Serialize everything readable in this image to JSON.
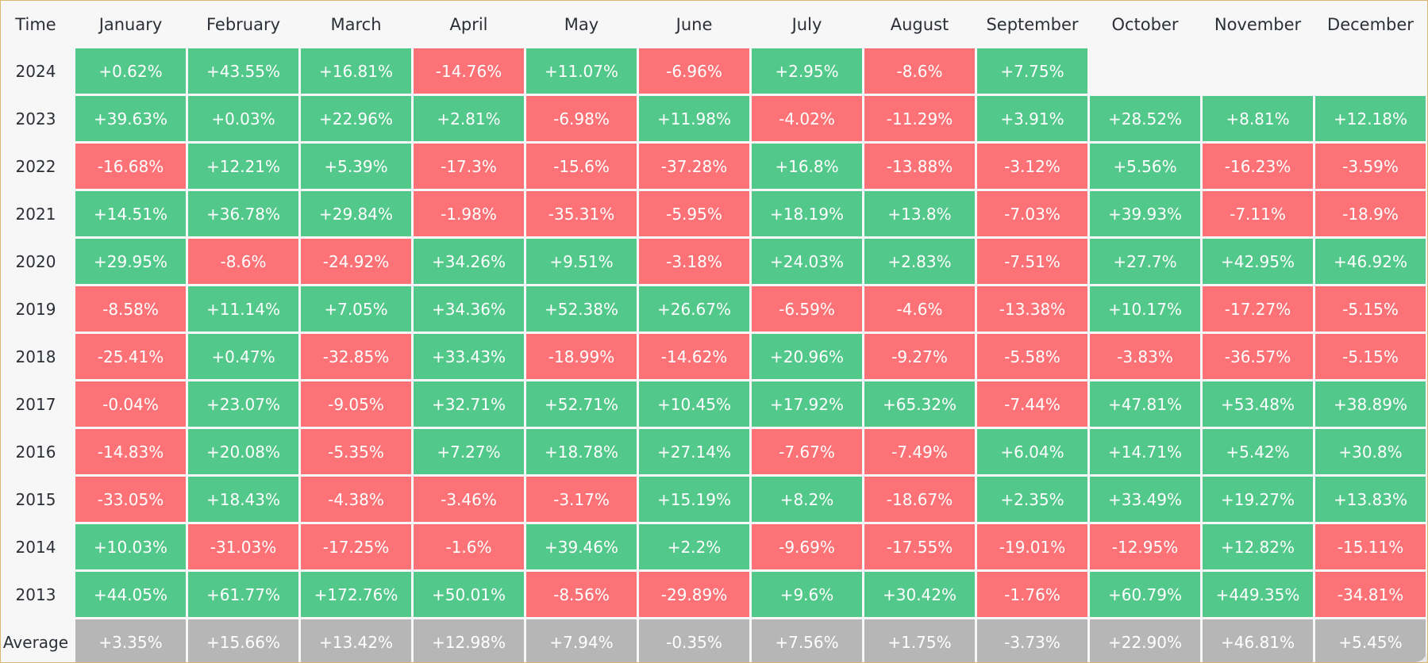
{
  "colors": {
    "positive": "#52c98a",
    "negative": "#fd7276",
    "average": "#b6b6b6",
    "background": "#f7f7f7",
    "text_dark": "#2b2f36"
  },
  "chart_data": {
    "type": "heatmap",
    "corner_label": "Time",
    "columns": [
      "January",
      "February",
      "March",
      "April",
      "May",
      "June",
      "July",
      "August",
      "September",
      "October",
      "November",
      "December"
    ],
    "rows": [
      {
        "label": "2024",
        "values": [
          "+0.62%",
          "+43.55%",
          "+16.81%",
          "-14.76%",
          "+11.07%",
          "-6.96%",
          "+2.95%",
          "-8.6%",
          "+7.75%",
          null,
          null,
          null
        ]
      },
      {
        "label": "2023",
        "values": [
          "+39.63%",
          "+0.03%",
          "+22.96%",
          "+2.81%",
          "-6.98%",
          "+11.98%",
          "-4.02%",
          "-11.29%",
          "+3.91%",
          "+28.52%",
          "+8.81%",
          "+12.18%"
        ]
      },
      {
        "label": "2022",
        "values": [
          "-16.68%",
          "+12.21%",
          "+5.39%",
          "-17.3%",
          "-15.6%",
          "-37.28%",
          "+16.8%",
          "-13.88%",
          "-3.12%",
          "+5.56%",
          "-16.23%",
          "-3.59%"
        ]
      },
      {
        "label": "2021",
        "values": [
          "+14.51%",
          "+36.78%",
          "+29.84%",
          "-1.98%",
          "-35.31%",
          "-5.95%",
          "+18.19%",
          "+13.8%",
          "-7.03%",
          "+39.93%",
          "-7.11%",
          "-18.9%"
        ]
      },
      {
        "label": "2020",
        "values": [
          "+29.95%",
          "-8.6%",
          "-24.92%",
          "+34.26%",
          "+9.51%",
          "-3.18%",
          "+24.03%",
          "+2.83%",
          "-7.51%",
          "+27.7%",
          "+42.95%",
          "+46.92%"
        ]
      },
      {
        "label": "2019",
        "values": [
          "-8.58%",
          "+11.14%",
          "+7.05%",
          "+34.36%",
          "+52.38%",
          "+26.67%",
          "-6.59%",
          "-4.6%",
          "-13.38%",
          "+10.17%",
          "-17.27%",
          "-5.15%"
        ]
      },
      {
        "label": "2018",
        "values": [
          "-25.41%",
          "+0.47%",
          "-32.85%",
          "+33.43%",
          "-18.99%",
          "-14.62%",
          "+20.96%",
          "-9.27%",
          "-5.58%",
          "-3.83%",
          "-36.57%",
          "-5.15%"
        ]
      },
      {
        "label": "2017",
        "values": [
          "-0.04%",
          "+23.07%",
          "-9.05%",
          "+32.71%",
          "+52.71%",
          "+10.45%",
          "+17.92%",
          "+65.32%",
          "-7.44%",
          "+47.81%",
          "+53.48%",
          "+38.89%"
        ]
      },
      {
        "label": "2016",
        "values": [
          "-14.83%",
          "+20.08%",
          "-5.35%",
          "+7.27%",
          "+18.78%",
          "+27.14%",
          "-7.67%",
          "-7.49%",
          "+6.04%",
          "+14.71%",
          "+5.42%",
          "+30.8%"
        ]
      },
      {
        "label": "2015",
        "values": [
          "-33.05%",
          "+18.43%",
          "-4.38%",
          "-3.46%",
          "-3.17%",
          "+15.19%",
          "+8.2%",
          "-18.67%",
          "+2.35%",
          "+33.49%",
          "+19.27%",
          "+13.83%"
        ]
      },
      {
        "label": "2014",
        "values": [
          "+10.03%",
          "-31.03%",
          "-17.25%",
          "-1.6%",
          "+39.46%",
          "+2.2%",
          "-9.69%",
          "-17.55%",
          "-19.01%",
          "-12.95%",
          "+12.82%",
          "-15.11%"
        ]
      },
      {
        "label": "2013",
        "values": [
          "+44.05%",
          "+61.77%",
          "+172.76%",
          "+50.01%",
          "-8.56%",
          "-29.89%",
          "+9.6%",
          "+30.42%",
          "-1.76%",
          "+60.79%",
          "+449.35%",
          "-34.81%"
        ]
      }
    ],
    "average": {
      "label": "Average",
      "values": [
        "+3.35%",
        "+15.66%",
        "+13.42%",
        "+12.98%",
        "+7.94%",
        "-0.35%",
        "+7.56%",
        "+1.75%",
        "-3.73%",
        "+22.90%",
        "+46.81%",
        "+5.45%"
      ]
    }
  }
}
